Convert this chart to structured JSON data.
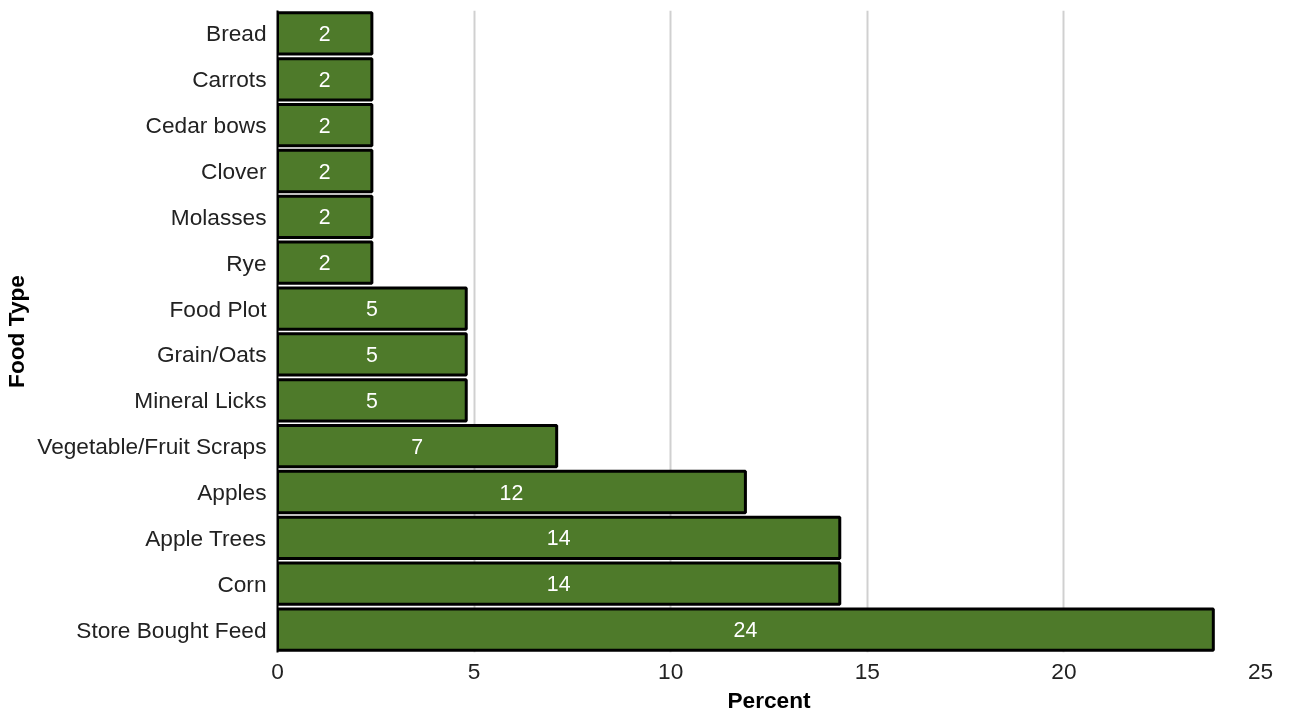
{
  "chart_data": {
    "type": "bar",
    "orientation": "horizontal",
    "xlabel": "Percent",
    "ylabel": "Food Type",
    "categories": [
      "Bread",
      "Carrots",
      "Cedar bows",
      "Clover",
      "Molasses",
      "Rye",
      "Food Plot",
      "Grain/Oats",
      "Mineral Licks",
      "Vegetable/Fruit Scraps",
      "Apples",
      "Apple Trees",
      "Corn",
      "Store Bought Feed"
    ],
    "values": [
      2.4,
      2.4,
      2.4,
      2.4,
      2.4,
      2.4,
      4.8,
      4.8,
      4.8,
      7.1,
      11.9,
      14.3,
      14.3,
      23.8
    ],
    "value_labels": [
      "2",
      "2",
      "2",
      "2",
      "2",
      "2",
      "5",
      "5",
      "5",
      "7",
      "12",
      "14",
      "14",
      "24"
    ],
    "color": "#4e7a2a",
    "xlim": [
      0,
      25
    ],
    "xticks": [
      0,
      5,
      10,
      15,
      20,
      25
    ],
    "grid": "x"
  }
}
